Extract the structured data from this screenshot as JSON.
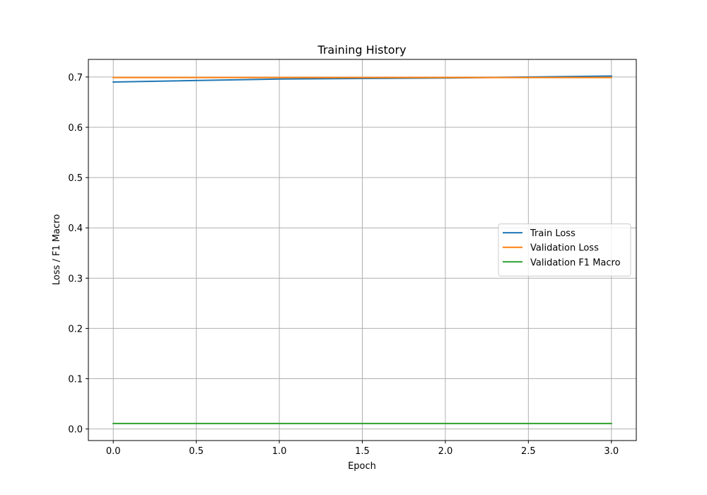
{
  "chart_data": {
    "type": "line",
    "title": "Training History",
    "xlabel": "Epoch",
    "ylabel": "Loss / F1 Macro",
    "x": [
      0,
      1,
      2,
      3
    ],
    "xlim": [
      -0.15,
      3.15
    ],
    "ylim": [
      -0.023,
      0.735
    ],
    "xticks": [
      0.0,
      0.5,
      1.0,
      1.5,
      2.0,
      2.5,
      3.0
    ],
    "xtick_labels": [
      "0.0",
      "0.5",
      "1.0",
      "1.5",
      "2.0",
      "2.5",
      "3.0"
    ],
    "yticks": [
      0.0,
      0.1,
      0.2,
      0.3,
      0.4,
      0.5,
      0.6,
      0.7
    ],
    "ytick_labels": [
      "0.0",
      "0.1",
      "0.2",
      "0.3",
      "0.4",
      "0.5",
      "0.6",
      "0.7"
    ],
    "grid": true,
    "legend_position": "center-right",
    "series": [
      {
        "name": "Train Loss",
        "color": "#1f77b4",
        "values": [
          0.69,
          0.696,
          0.698,
          0.702
        ]
      },
      {
        "name": "Validation Loss",
        "color": "#ff7f0e",
        "values": [
          0.699,
          0.699,
          0.699,
          0.699
        ]
      },
      {
        "name": "Validation F1 Macro",
        "color": "#2ca02c",
        "values": [
          0.011,
          0.011,
          0.011,
          0.011
        ]
      }
    ]
  }
}
